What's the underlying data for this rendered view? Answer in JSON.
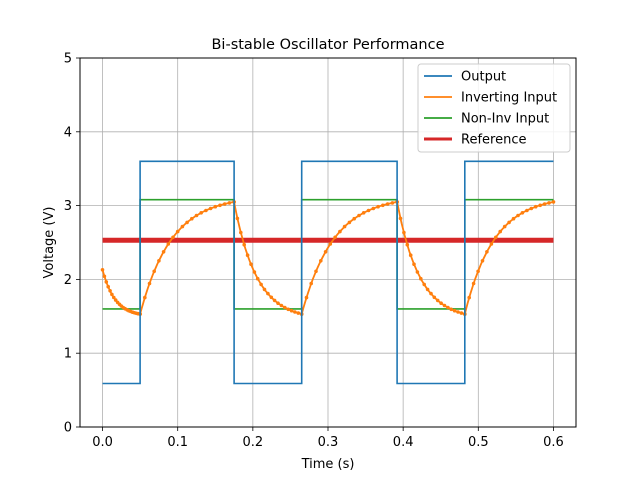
{
  "chart_data": {
    "type": "line",
    "title": "Bi-stable Oscillator Performance",
    "xlabel": "Time (s)",
    "ylabel": "Voltage (V)",
    "xlim": [
      -0.03,
      0.63
    ],
    "ylim": [
      0,
      5
    ],
    "xticks": [
      "0.0",
      "0.1",
      "0.2",
      "0.3",
      "0.4",
      "0.5",
      "0.6"
    ],
    "yticks": [
      "0",
      "1",
      "2",
      "3",
      "4",
      "5"
    ],
    "grid": true,
    "legend_position": "top-right",
    "switch_times": [
      0.05,
      0.175,
      0.265,
      0.392,
      0.482
    ],
    "series": [
      {
        "name": "Output",
        "color": "#1f77b4",
        "low": 0.59,
        "high": 3.6
      },
      {
        "name": "Inverting Input",
        "color": "#ff7f0e",
        "start": 2.13,
        "range": [
          1.53,
          3.05
        ],
        "marker": "dot"
      },
      {
        "name": "Non-Inv Input",
        "color": "#2ca02c",
        "low": 1.6,
        "high": 3.08
      },
      {
        "name": "Reference",
        "color": "#d62728",
        "value": 2.53
      }
    ]
  }
}
